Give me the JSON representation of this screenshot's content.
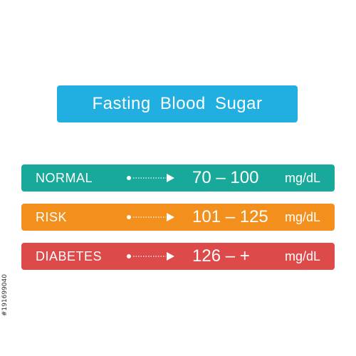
{
  "title": {
    "text": "Fasting Blood Sugar",
    "color": "#21aee0"
  },
  "rows": [
    {
      "label": "NORMAL",
      "range": "70 – 100",
      "unit": "mg/dL",
      "color": "#19a99a",
      "icon": "dotted-arrow-icon"
    },
    {
      "label": "RISK",
      "range": "101 – 125",
      "unit": "mg/dL",
      "color": "#f3901d",
      "icon": "dotted-arrow-icon"
    },
    {
      "label": "DIABETES",
      "range": "126 – +",
      "unit": "mg/dL",
      "color": "#dd4a4a",
      "icon": "dotted-arrow-icon"
    }
  ],
  "stock_id": "#191699040"
}
